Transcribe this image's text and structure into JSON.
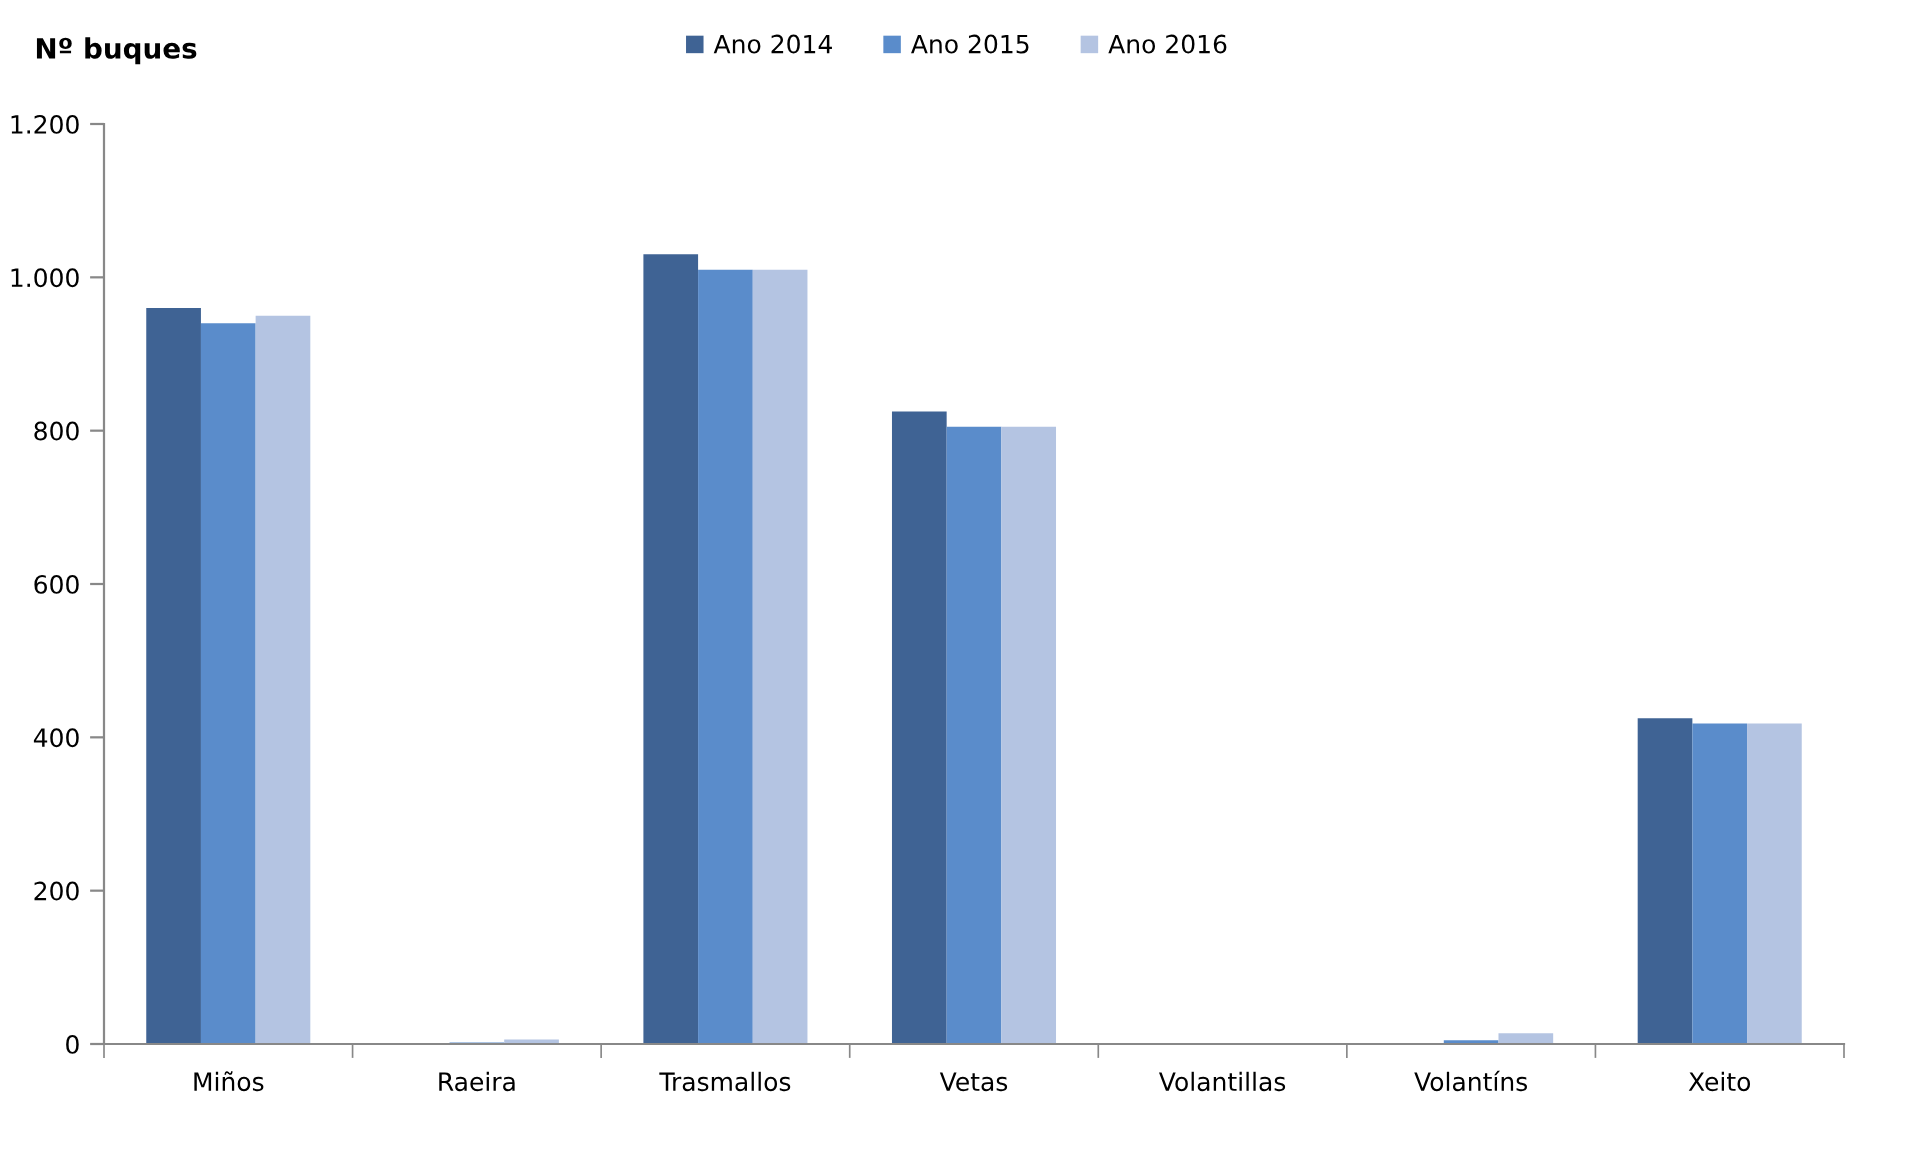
{
  "chart_data": {
    "type": "bar",
    "ylabel": "Nº buques",
    "categories": [
      "Miños",
      "Raeira",
      "Trasmallos",
      "Vetas",
      "Volantillas",
      "Volantíns",
      "Xeito"
    ],
    "series": [
      {
        "name": "Ano 2014",
        "color": "#3f6394",
        "values": [
          960,
          0,
          1030,
          825,
          0,
          0,
          425
        ]
      },
      {
        "name": "Ano 2015",
        "color": "#5a8ccb",
        "values": [
          940,
          2,
          1010,
          805,
          0,
          5,
          418
        ]
      },
      {
        "name": "Ano 2016",
        "color": "#b4c4e2",
        "values": [
          950,
          6,
          1010,
          805,
          0,
          14,
          418
        ]
      }
    ],
    "ylim": [
      0,
      1200
    ],
    "yticks": [
      0,
      200,
      400,
      600,
      800,
      {
        "value": 1000,
        "label": "1.000"
      },
      {
        "value": 1200,
        "label": "1.200"
      }
    ],
    "grid": false,
    "legend": "top"
  }
}
